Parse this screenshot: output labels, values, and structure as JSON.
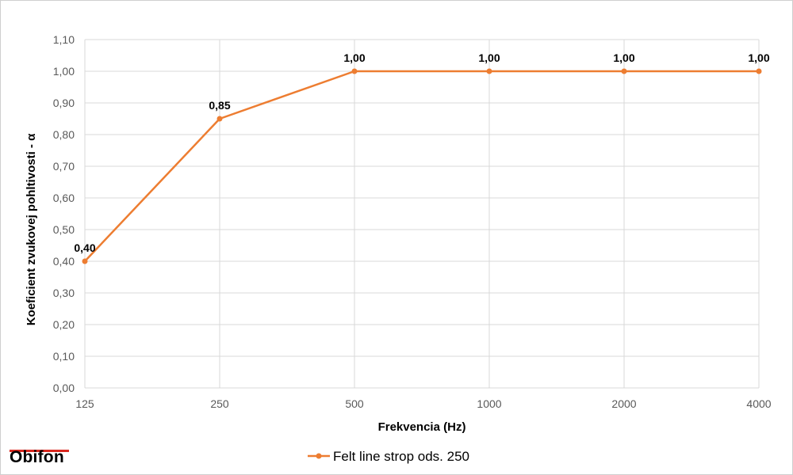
{
  "chart_data": {
    "type": "line",
    "categories": [
      "125",
      "250",
      "500",
      "1000",
      "2000",
      "4000"
    ],
    "series": [
      {
        "name": "Felt line strop ods. 250",
        "values": [
          0.4,
          0.85,
          1.0,
          1.0,
          1.0,
          1.0
        ],
        "data_labels": [
          "0,40",
          "0,85",
          "1,00",
          "1,00",
          "1,00",
          "1,00"
        ],
        "color": "#ed7d31"
      }
    ],
    "xlabel": "Frekvencia (Hz)",
    "ylabel": "Koeficient zvukovej pohltivosti - α",
    "ylim": [
      0,
      1.1
    ],
    "y_ticks": [
      0.0,
      0.1,
      0.2,
      0.3,
      0.4,
      0.5,
      0.6,
      0.7,
      0.8,
      0.9,
      1.0,
      1.1
    ],
    "y_tick_labels": [
      "0,00",
      "0,10",
      "0,20",
      "0,30",
      "0,40",
      "0,50",
      "0,60",
      "0,70",
      "0,80",
      "0,90",
      "1,00",
      "1,10"
    ],
    "grid": true,
    "legend_position": "bottom"
  },
  "branding": {
    "logo_text": "Obifon",
    "accent_color": "#d9281f"
  }
}
